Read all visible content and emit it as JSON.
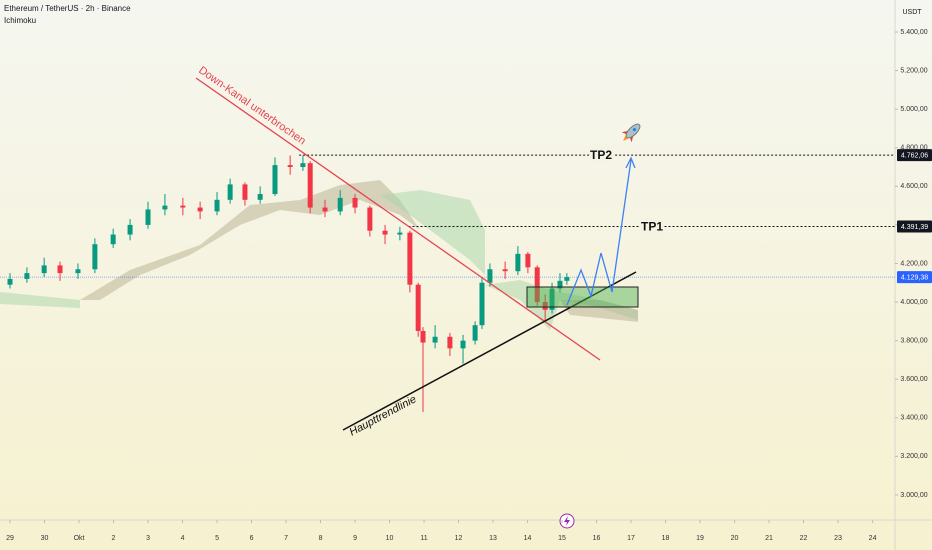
{
  "chart_data": {
    "type": "candlestick",
    "title": "Ethereum / TetherUS · 2h · Binance",
    "indicator": "Ichimoku",
    "currency": "USDT",
    "up_color": "#089981",
    "down_color": "#f23645",
    "x": [
      0,
      0.49,
      0.99,
      1.45,
      1.97,
      2.46,
      2.99,
      3.48,
      4,
      4.49,
      5.01,
      5.51,
      6,
      6.38,
      6.81,
      7.25,
      7.68,
      8.12,
      8.49,
      8.7,
      9.13,
      9.57,
      10,
      10.43,
      10.87,
      11.3,
      11.59,
      11.83,
      11.97,
      12.32,
      12.75,
      13.13,
      13.48,
      13.68,
      13.91,
      14.35,
      14.72,
      15.01,
      15.28,
      15.51,
      15.71,
      15.94,
      16.14
    ],
    "open": [
      4090,
      4120,
      4150,
      4190,
      4150,
      4170,
      4300,
      4350,
      4400,
      4480,
      4500,
      4490,
      4470,
      4530,
      4610,
      4530,
      4560,
      4710,
      4700,
      4720,
      4490,
      4470,
      4540,
      4490,
      4370,
      4350,
      4360,
      4090,
      3850,
      3790,
      3820,
      3760,
      3800,
      3880,
      4100,
      4170,
      4160,
      4250,
      4180,
      4000,
      3960,
      4070,
      4110
    ],
    "high": [
      4150,
      4180,
      4230,
      4210,
      4200,
      4330,
      4380,
      4430,
      4520,
      4560,
      4540,
      4520,
      4570,
      4640,
      4620,
      4600,
      4750,
      4760,
      4760,
      4730,
      4530,
      4580,
      4560,
      4500,
      4400,
      4390,
      4370,
      4100,
      3870,
      3880,
      3840,
      3830,
      3900,
      4130,
      4200,
      4210,
      4290,
      4260,
      4190,
      4040,
      4100,
      4150,
      4150
    ],
    "low": [
      4070,
      4100,
      4130,
      4110,
      4120,
      4150,
      4280,
      4320,
      4380,
      4450,
      4450,
      4430,
      4450,
      4510,
      4500,
      4510,
      4550,
      4660,
      4680,
      4460,
      4440,
      4450,
      4460,
      4340,
      4300,
      4320,
      4050,
      3820,
      3430,
      3760,
      3720,
      3680,
      3780,
      3860,
      4080,
      4120,
      4140,
      4150,
      3980,
      3900,
      3940,
      4050,
      4090
    ],
    "close": [
      4120,
      4150,
      4190,
      4150,
      4170,
      4300,
      4350,
      4400,
      4480,
      4500,
      4490,
      4470,
      4530,
      4610,
      4530,
      4560,
      4710,
      4700,
      4720,
      4490,
      4470,
      4540,
      4490,
      4370,
      4350,
      4360,
      4090,
      3850,
      3790,
      3820,
      3760,
      3800,
      3880,
      4100,
      4170,
      4160,
      4250,
      4180,
      4000,
      3960,
      4070,
      4110,
      4129.38
    ],
    "xlim": [
      -0.29,
      25.65
    ],
    "xticks": [
      {
        "value": 0,
        "label": "29"
      },
      {
        "value": 1,
        "label": "30"
      },
      {
        "value": 2,
        "label": "Okt"
      },
      {
        "value": 3,
        "label": "2"
      },
      {
        "value": 4,
        "label": "3"
      },
      {
        "value": 5,
        "label": "4"
      },
      {
        "value": 6,
        "label": "5"
      },
      {
        "value": 7,
        "label": "6"
      },
      {
        "value": 8,
        "label": "7"
      },
      {
        "value": 9,
        "label": "8"
      },
      {
        "value": 10,
        "label": "9"
      },
      {
        "value": 11,
        "label": "10"
      },
      {
        "value": 12,
        "label": "11"
      },
      {
        "value": 13,
        "label": "12"
      },
      {
        "value": 14,
        "label": "13"
      },
      {
        "value": 15,
        "label": "14"
      },
      {
        "value": 16,
        "label": "15"
      },
      {
        "value": 17,
        "label": "16"
      },
      {
        "value": 18,
        "label": "17"
      },
      {
        "value": 19,
        "label": "18"
      },
      {
        "value": 20,
        "label": "19"
      },
      {
        "value": 21,
        "label": "20"
      },
      {
        "value": 22,
        "label": "21"
      },
      {
        "value": 23,
        "label": "22"
      },
      {
        "value": 24,
        "label": "23"
      },
      {
        "value": 25,
        "label": "24"
      }
    ],
    "ylim": [
      2870,
      5566
    ],
    "yticks": [
      {
        "value": 3000,
        "label": "3.000,00"
      },
      {
        "value": 3200,
        "label": "3.200,00"
      },
      {
        "value": 3400,
        "label": "3.400,00"
      },
      {
        "value": 3600,
        "label": "3.600,00"
      },
      {
        "value": 3800,
        "label": "3.800,00"
      },
      {
        "value": 4000,
        "label": "4.000,00"
      },
      {
        "value": 4200,
        "label": "4.200,00"
      },
      {
        "value": 4400,
        "label": "4.400,00"
      },
      {
        "value": 4600,
        "label": "4.600,00"
      },
      {
        "value": 4800,
        "label": "4.800,00"
      },
      {
        "value": 5000,
        "label": "5.000,00"
      },
      {
        "value": 5200,
        "label": "5.200,00"
      },
      {
        "value": 5400,
        "label": "5.400,00"
      }
    ],
    "target_lines": [
      {
        "name": "TP2",
        "value": 4762.06,
        "value_label": "4.762,06",
        "start": 8.38
      },
      {
        "name": "TP1",
        "value": 4391.39,
        "value_label": "4.391,39",
        "start": 11.55
      }
    ],
    "last_price": {
      "value": 4129.38,
      "value_label": "4.129,38"
    },
    "annotations": [
      "Down-Kanal unterbrochen",
      "Haupttrendlinie"
    ]
  }
}
